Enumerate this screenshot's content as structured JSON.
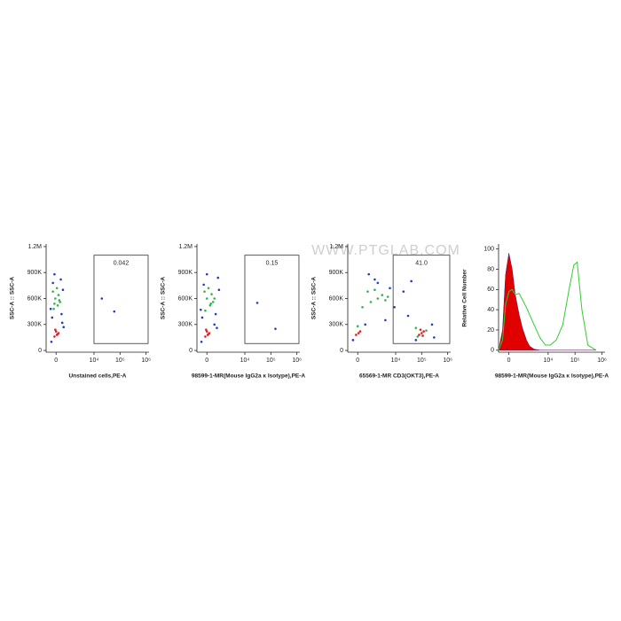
{
  "watermark": "WWW.PTGLAB.COM",
  "chart_data": [
    {
      "type": "scatter",
      "x_label": "Unstained cells,PE-A",
      "y_label": "SSC-A :: SSC-A",
      "xlim": [
        -700,
        1300000
      ],
      "ylim": [
        -20000,
        1230000
      ],
      "xticks": [
        0,
        {
          "value": 10000,
          "label": "10⁴"
        },
        {
          "value": 100000,
          "label": "10⁵"
        },
        {
          "value": 1000000,
          "label": "10⁶"
        }
      ],
      "yticks": [
        0,
        {
          "value": 300000,
          "label": "300K"
        },
        {
          "value": 600000,
          "label": "600K"
        },
        {
          "value": 900000,
          "label": "900K"
        },
        {
          "value": 1200000,
          "label": "1.2M"
        }
      ],
      "gate": {
        "xlim": [
          10000,
          1200000
        ],
        "ylim": [
          80000,
          1100000
        ],
        "label": "0.042"
      },
      "series": [
        {
          "color": "#1f3fbf",
          "x": [
            -300,
            400,
            -250,
            350,
            -200,
            300,
            20000,
            60000,
            -100,
            500,
            -350,
            450
          ],
          "y": [
            100000,
            320000,
            380000,
            420000,
            780000,
            820000,
            600000,
            450000,
            880000,
            270000,
            480000,
            700000
          ]
        },
        {
          "color": "#2fb84a",
          "x": [
            -150,
            100,
            250,
            -50,
            150,
            -200,
            50,
            200,
            -100
          ],
          "y": [
            480000,
            520000,
            560000,
            600000,
            640000,
            680000,
            720000,
            580000,
            540000
          ]
        },
        {
          "color": "#e02020",
          "x": [
            -100,
            50,
            150,
            0,
            -50,
            100
          ],
          "y": [
            160000,
            180000,
            200000,
            220000,
            240000,
            190000
          ]
        }
      ]
    },
    {
      "type": "scatter",
      "x_label": "98599-1-MR(Mouse IgG2a κ Isotype),PE-A",
      "y_label": "SSC-A :: SSC-A",
      "xlim": [
        -700,
        1300000
      ],
      "ylim": [
        -20000,
        1230000
      ],
      "xticks": [
        0,
        {
          "value": 10000,
          "label": "10⁴"
        },
        {
          "value": 100000,
          "label": "10⁵"
        },
        {
          "value": 1000000,
          "label": "10⁶"
        }
      ],
      "yticks": [
        0,
        {
          "value": 300000,
          "label": "300K"
        },
        {
          "value": 600000,
          "label": "600K"
        },
        {
          "value": 900000,
          "label": "900K"
        },
        {
          "value": 1200000,
          "label": "1.2M"
        }
      ],
      "gate": {
        "xlim": [
          10000,
          1200000
        ],
        "ylim": [
          80000,
          1100000
        ],
        "label": "0.15"
      },
      "series": [
        {
          "color": "#1f3fbf",
          "x": [
            -350,
            500,
            -300,
            600,
            -200,
            800,
            30000,
            150000,
            0,
            700,
            -400,
            900
          ],
          "y": [
            100000,
            300000,
            380000,
            420000,
            760000,
            840000,
            550000,
            250000,
            880000,
            260000,
            470000,
            700000
          ]
        },
        {
          "color": "#2fb84a",
          "x": [
            -100,
            200,
            400,
            0,
            300,
            -150,
            100,
            500,
            250
          ],
          "y": [
            460000,
            520000,
            560000,
            600000,
            650000,
            680000,
            720000,
            600000,
            540000
          ]
        },
        {
          "color": "#e02020",
          "x": [
            -100,
            50,
            150,
            0,
            -50,
            100
          ],
          "y": [
            160000,
            180000,
            200000,
            220000,
            240000,
            190000
          ]
        }
      ]
    },
    {
      "type": "scatter",
      "x_label": "65569-1-MR CD3(OKT3),PE-A",
      "y_label": "SSC-A :: SSC-A",
      "xlim": [
        -700,
        1300000
      ],
      "ylim": [
        -20000,
        1230000
      ],
      "xticks": [
        0,
        {
          "value": 10000,
          "label": "10⁴"
        },
        {
          "value": 100000,
          "label": "10⁵"
        },
        {
          "value": 1000000,
          "label": "10⁶"
        }
      ],
      "yticks": [
        0,
        {
          "value": 300000,
          "label": "300K"
        },
        {
          "value": 600000,
          "label": "600K"
        },
        {
          "value": 900000,
          "label": "900K"
        },
        {
          "value": 1200000,
          "label": "1.2M"
        }
      ],
      "gate": {
        "xlim": [
          8000,
          1200000
        ],
        "ylim": [
          80000,
          1100000
        ],
        "label": "41.0"
      },
      "series": [
        {
          "color": "#1f3fbf",
          "x": [
            -300,
            500,
            2000,
            6000,
            9000,
            1500,
            800,
            20000,
            40000,
            250000,
            300000,
            60000,
            30000,
            4000
          ],
          "y": [
            120000,
            300000,
            780000,
            720000,
            500000,
            820000,
            880000,
            680000,
            800000,
            300000,
            150000,
            120000,
            400000,
            350000
          ]
        },
        {
          "color": "#2fb84a",
          "x": [
            300,
            1000,
            2000,
            3000,
            4000,
            5000,
            700,
            1500,
            60000,
            150000,
            70000,
            0
          ],
          "y": [
            500000,
            560000,
            600000,
            640000,
            580000,
            620000,
            680000,
            700000,
            260000,
            230000,
            160000,
            280000
          ]
        },
        {
          "color": "#e02020",
          "x": [
            -100,
            50,
            150,
            80000,
            100000,
            120000,
            90000,
            110000
          ],
          "y": [
            180000,
            200000,
            220000,
            180000,
            200000,
            220000,
            240000,
            170000
          ]
        }
      ]
    },
    {
      "type": "histogram",
      "x_label": "98599-1-MR(Mouse IgG2a κ Isotype),PE-A",
      "y_label": "Relative Cell Number",
      "xlim": [
        -700,
        1300000
      ],
      "ylim": [
        -2,
        105
      ],
      "xticks": [
        0,
        {
          "value": 10000,
          "label": "10⁴"
        },
        {
          "value": 100000,
          "label": "10⁵"
        },
        {
          "value": 1000000,
          "label": "10⁶"
        }
      ],
      "yticks": [
        0,
        20,
        40,
        60,
        80,
        100
      ],
      "x": [
        -700,
        -400,
        -200,
        0,
        200,
        400,
        700,
        1000,
        1500,
        2000,
        3000,
        5000,
        8000,
        12000,
        20000,
        35000,
        60000,
        90000,
        120000,
        180000,
        300000,
        600000
      ],
      "series": [
        {
          "color": "#e00000",
          "fill": true,
          "values": [
            0,
            20,
            75,
            96,
            80,
            55,
            35,
            22,
            10,
            4,
            1,
            0,
            0,
            0,
            0,
            0,
            0,
            0,
            0,
            0,
            0,
            0
          ]
        },
        {
          "color": "#33cc33",
          "fill": false,
          "values": [
            0,
            10,
            45,
            58,
            60,
            55,
            56,
            50,
            42,
            35,
            25,
            12,
            5,
            5,
            10,
            25,
            60,
            84,
            87,
            40,
            5,
            0
          ]
        }
      ]
    }
  ]
}
